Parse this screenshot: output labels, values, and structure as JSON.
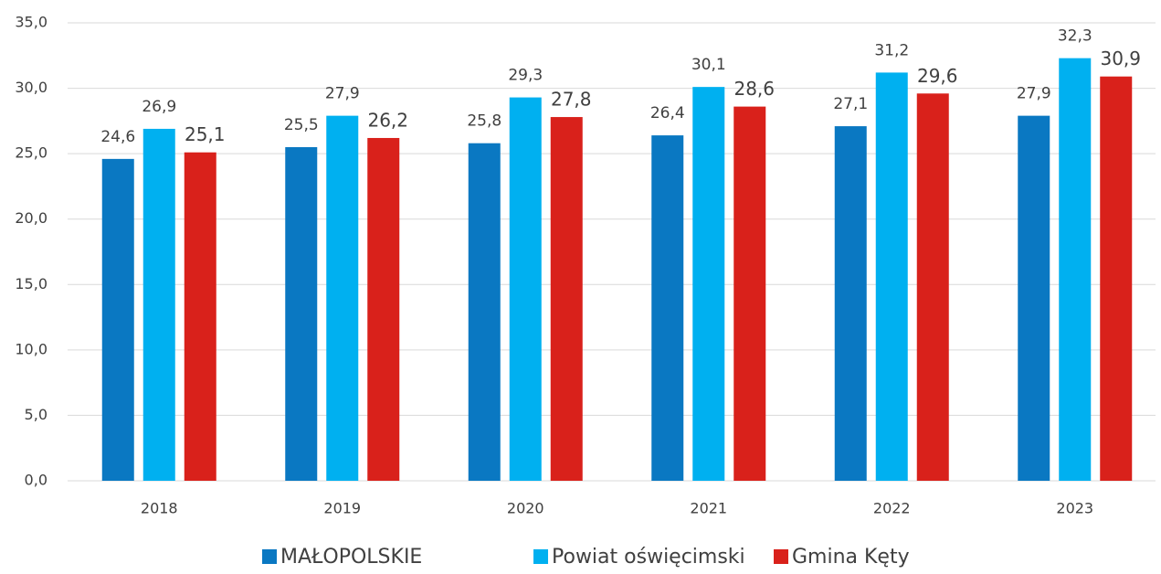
{
  "chart_data": {
    "type": "bar",
    "categories": [
      "2018",
      "2019",
      "2020",
      "2021",
      "2022",
      "2023"
    ],
    "series": [
      {
        "name": "MAŁOPOLSKIE",
        "color": "#0a78c2",
        "values": [
          24.6,
          25.5,
          25.8,
          26.4,
          27.1,
          27.9
        ],
        "value_labels": [
          "24,6",
          "25,5",
          "25,8",
          "26,4",
          "27,1",
          "27,9"
        ]
      },
      {
        "name": "Powiat oświęcimski",
        "color": "#00b0f0",
        "values": [
          26.9,
          27.9,
          29.3,
          30.1,
          31.2,
          32.3
        ],
        "value_labels": [
          "26,9",
          "27,9",
          "29,3",
          "30,1",
          "31,2",
          "32,3"
        ]
      },
      {
        "name": "Gmina Kęty",
        "color": "#d9211b",
        "values": [
          25.1,
          26.2,
          27.8,
          28.6,
          29.6,
          30.9
        ],
        "value_labels": [
          "25,1",
          "26,2",
          "27,8",
          "28,6",
          "29,6",
          "30,9"
        ]
      }
    ],
    "ylim": [
      0,
      35
    ],
    "yticks": [
      {
        "value": 0,
        "label": "0,0"
      },
      {
        "value": 5,
        "label": "5,0"
      },
      {
        "value": 10,
        "label": "10,0"
      },
      {
        "value": 15,
        "label": "15,0"
      },
      {
        "value": 20,
        "label": "20,0"
      },
      {
        "value": 25,
        "label": "25,0"
      },
      {
        "value": 30,
        "label": "30,0"
      },
      {
        "value": 35,
        "label": "35,0"
      }
    ],
    "grid": true,
    "legend": "bottom"
  }
}
